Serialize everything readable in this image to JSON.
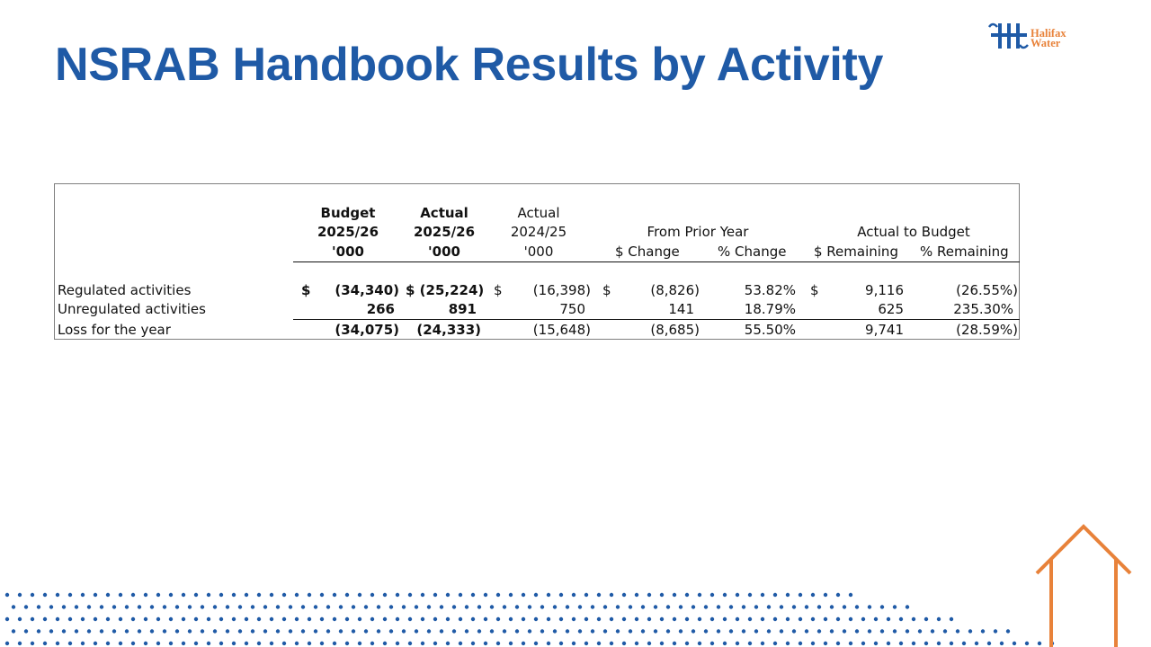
{
  "title": "NSRAB Handbook Results by Activity",
  "logo": {
    "line1": "Halifax",
    "line2": "Water"
  },
  "colors": {
    "title": "#1f5aa6",
    "accent": "#e8823a",
    "dots": "#1f5aa6"
  },
  "table": {
    "headers": {
      "budget": [
        "Budget",
        "2025/26",
        "'000"
      ],
      "actual_current": [
        "Actual",
        "2025/26",
        "'000"
      ],
      "actual_prior": [
        "Actual",
        "2024/25",
        "'000"
      ],
      "group_prior": "From Prior Year",
      "group_budget": "Actual to Budget",
      "dollar_change": "$ Change",
      "pct_change": "% Change",
      "dollar_remaining": "$ Remaining",
      "pct_remaining": "% Remaining"
    },
    "currency_symbol": "$",
    "rows": [
      {
        "label": "Regulated activities",
        "budget": "(34,340)",
        "actual_current": "$ (25,224)",
        "actual_prior": "(16,398)",
        "dollar_change": "(8,826)",
        "pct_change": "53.82%",
        "dollar_remaining": "9,116",
        "pct_remaining": "(26.55%)"
      },
      {
        "label": "Unregulated activities",
        "budget": "266",
        "actual_current": "891",
        "actual_prior": "750",
        "dollar_change": "141",
        "pct_change": "18.79%",
        "dollar_remaining": "625",
        "pct_remaining": "235.30%"
      },
      {
        "label": "Loss for the year",
        "budget": "(34,075)",
        "actual_current": "(24,333)",
        "actual_prior": "(15,648)",
        "dollar_change": "(8,685)",
        "pct_change": "55.50%",
        "dollar_remaining": "9,741",
        "pct_remaining": "(28.59%)"
      }
    ]
  }
}
